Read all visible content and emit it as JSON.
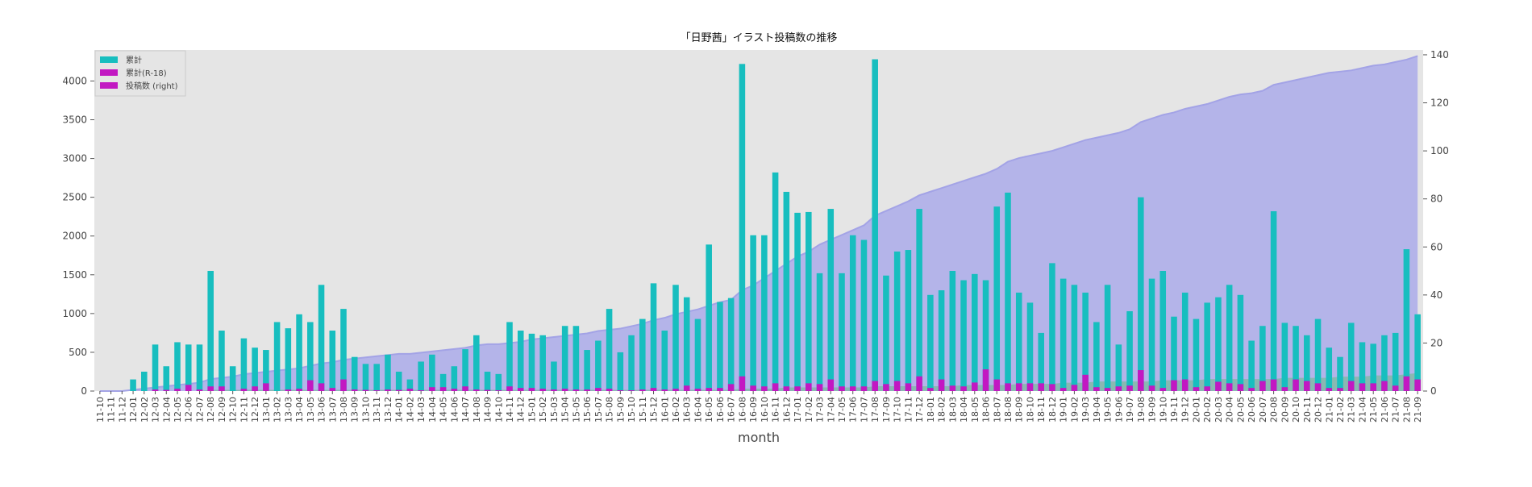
{
  "chart_data": {
    "type": "bar",
    "title": "「日野茜」イラスト投稿数の推移",
    "xlabel": "month",
    "ylabel": "",
    "ylim": [
      0,
      4400
    ],
    "y2lim": [
      0,
      142
    ],
    "yticks": [
      0,
      500,
      1000,
      1500,
      2000,
      2500,
      3000,
      3500,
      4000
    ],
    "y2ticks": [
      0,
      20,
      40,
      60,
      80,
      100,
      120,
      140
    ],
    "grid": false,
    "legend_position": "top-left",
    "colors": {
      "bar_total": "#17bebf",
      "bar_r18": "#c218c2",
      "area_fill": "#b4b4e9",
      "area_line": "#a3a3e6",
      "area_small": "#7fb9a4",
      "plot_bg": "#e5e5e5"
    },
    "categories": [
      "11-10",
      "11-11",
      "11-12",
      "12-01",
      "12-02",
      "12-03",
      "12-04",
      "12-05",
      "12-06",
      "12-07",
      "12-08",
      "12-09",
      "12-10",
      "12-11",
      "12-12",
      "13-01",
      "13-02",
      "13-03",
      "13-04",
      "13-05",
      "13-06",
      "13-07",
      "13-08",
      "13-09",
      "13-10",
      "13-11",
      "13-12",
      "14-01",
      "14-02",
      "14-03",
      "14-04",
      "14-05",
      "14-06",
      "14-07",
      "14-08",
      "14-09",
      "14-10",
      "14-11",
      "14-12",
      "15-01",
      "15-02",
      "15-03",
      "15-04",
      "15-05",
      "15-06",
      "15-07",
      "15-08",
      "15-09",
      "15-10",
      "15-11",
      "15-12",
      "16-01",
      "16-02",
      "16-03",
      "16-04",
      "16-05",
      "16-06",
      "16-07",
      "16-08",
      "16-09",
      "16-10",
      "16-11",
      "16-12",
      "17-01",
      "17-02",
      "17-03",
      "17-04",
      "17-05",
      "17-06",
      "17-07",
      "17-08",
      "17-09",
      "17-10",
      "17-11",
      "17-12",
      "18-01",
      "18-02",
      "18-03",
      "18-04",
      "18-05",
      "18-06",
      "18-07",
      "18-08",
      "18-09",
      "18-10",
      "18-11",
      "18-12",
      "19-01",
      "19-02",
      "19-03",
      "19-04",
      "19-05",
      "19-06",
      "19-07",
      "19-08",
      "19-09",
      "19-10",
      "19-11",
      "19-12",
      "20-01",
      "20-02",
      "20-03",
      "20-04",
      "20-05",
      "20-06",
      "20-07",
      "20-08",
      "20-09",
      "20-10",
      "20-11",
      "20-12",
      "21-01",
      "21-02",
      "21-03",
      "21-04",
      "21-05",
      "21-06",
      "21-07",
      "21-08",
      "21-09"
    ],
    "series": [
      {
        "name": "累計",
        "kind": "bar",
        "axis": "left",
        "values": [
          0,
          0,
          0,
          150,
          250,
          600,
          320,
          630,
          600,
          600,
          1550,
          780,
          320,
          680,
          560,
          530,
          890,
          810,
          990,
          890,
          1370,
          780,
          1060,
          440,
          350,
          350,
          470,
          250,
          150,
          380,
          470,
          220,
          320,
          540,
          720,
          250,
          220,
          890,
          780,
          740,
          720,
          380,
          840,
          840,
          530,
          650,
          1060,
          500,
          720,
          930,
          1390,
          780,
          1370,
          1210,
          930,
          1890,
          1150,
          1200,
          4220,
          2010,
          2010,
          2820,
          2570,
          2300,
          2310,
          1520,
          2350,
          1520,
          2010,
          1950,
          4280,
          1490,
          1800,
          1820,
          2350,
          1240,
          1300,
          1550,
          1430,
          1510,
          1430,
          2380,
          2560,
          1270,
          1140,
          750,
          1650,
          1450,
          1370,
          1270,
          890,
          1370,
          600,
          1030,
          2500,
          1450,
          1550,
          960,
          1270,
          930,
          1140,
          1210,
          1370,
          1240,
          650,
          840,
          2320,
          880,
          840,
          720,
          930,
          560,
          440,
          880,
          630,
          610,
          720,
          750,
          1830,
          990
        ]
      },
      {
        "name": "累計(R-18)",
        "kind": "bar",
        "axis": "left",
        "values": [
          0,
          0,
          0,
          0,
          0,
          20,
          15,
          30,
          80,
          20,
          60,
          60,
          0,
          30,
          60,
          100,
          0,
          20,
          30,
          140,
          100,
          40,
          150,
          20,
          15,
          10,
          20,
          15,
          30,
          10,
          50,
          50,
          30,
          60,
          20,
          15,
          10,
          60,
          40,
          40,
          30,
          20,
          30,
          20,
          20,
          40,
          30,
          10,
          10,
          20,
          40,
          20,
          30,
          70,
          30,
          40,
          40,
          90,
          190,
          70,
          60,
          100,
          60,
          60,
          100,
          90,
          150,
          60,
          60,
          60,
          130,
          90,
          130,
          100,
          190,
          40,
          150,
          70,
          60,
          110,
          280,
          150,
          100,
          100,
          100,
          100,
          90,
          40,
          80,
          210,
          50,
          40,
          60,
          70,
          270,
          70,
          40,
          140,
          150,
          50,
          60,
          120,
          100,
          90,
          40,
          130,
          150,
          50,
          150,
          130,
          100,
          40,
          40,
          130,
          100,
          100,
          130,
          70,
          190,
          150
        ]
      },
      {
        "name": "投稿数 (right)",
        "kind": "area",
        "axis": "right",
        "values": [
          0,
          0,
          0,
          0.5,
          1,
          1.5,
          2,
          2.5,
          3,
          3.5,
          5,
          5.5,
          6,
          7,
          7.5,
          8,
          8.5,
          9,
          9.5,
          10.5,
          11.5,
          12,
          13,
          13.5,
          14,
          14.5,
          15,
          15.5,
          15.5,
          16,
          16.5,
          17,
          17.5,
          18,
          19,
          19.5,
          19.5,
          20,
          20.5,
          21.5,
          22,
          22.5,
          23,
          23.5,
          24,
          25,
          25.5,
          26,
          27,
          28,
          29.5,
          30.5,
          32,
          33,
          34,
          35.5,
          37,
          38,
          42,
          44,
          47,
          50,
          53,
          56,
          58,
          61,
          63,
          65,
          67,
          69,
          73,
          75,
          77,
          79,
          81.5,
          83,
          84.5,
          86,
          87.5,
          89,
          90.5,
          92.5,
          95.5,
          97,
          98,
          99,
          100,
          101.5,
          103,
          104.5,
          105.5,
          106.5,
          107.5,
          109,
          112,
          113.5,
          115,
          116,
          117.5,
          118.5,
          119.5,
          121,
          122.5,
          123.5,
          124,
          125,
          127.5,
          128.5,
          129.5,
          130.5,
          131.5,
          132.5,
          133,
          133.5,
          134.5,
          135.5,
          136,
          137,
          138,
          139.5
        ]
      }
    ],
    "small_area_values_right": [
      0,
      0,
      0,
      0,
      0,
      0,
      0,
      0,
      0,
      0,
      0.5,
      0.5,
      0.5,
      0.5,
      0.5,
      0.5,
      0.5,
      0.5,
      0.5,
      0.5,
      0.5,
      0.5,
      0.5,
      0.5,
      0.5,
      0.5,
      0.5,
      0.5,
      0.5,
      0.5,
      0.5,
      0.5,
      0.5,
      0.5,
      0.5,
      0.5,
      0.5,
      0.5,
      0.5,
      0.5,
      0.5,
      0.5,
      0.5,
      0.5,
      0.5,
      0.5,
      0.5,
      0.5,
      0.5,
      0.5,
      0.5,
      0.5,
      0.5,
      0.5,
      0.5,
      0.5,
      0.5,
      0.5,
      1,
      1,
      1,
      1,
      1.5,
      1.5,
      1.5,
      1.5,
      1.5,
      1.5,
      1.5,
      1.5,
      2,
      2,
      2,
      2,
      2,
      2,
      2,
      2,
      2.5,
      2.5,
      2.5,
      2.5,
      2.5,
      3,
      3,
      3,
      3,
      3.5,
      3.5,
      3.5,
      4,
      4,
      4,
      4,
      4,
      4,
      4.5,
      4.5,
      4.5,
      4.5,
      5,
      5,
      5,
      5,
      5,
      5,
      5,
      5.5,
      5.5,
      5.5,
      5.5,
      5.5,
      6,
      6,
      6,
      6.5,
      6.5,
      6.5,
      7,
      7.5
    ]
  }
}
